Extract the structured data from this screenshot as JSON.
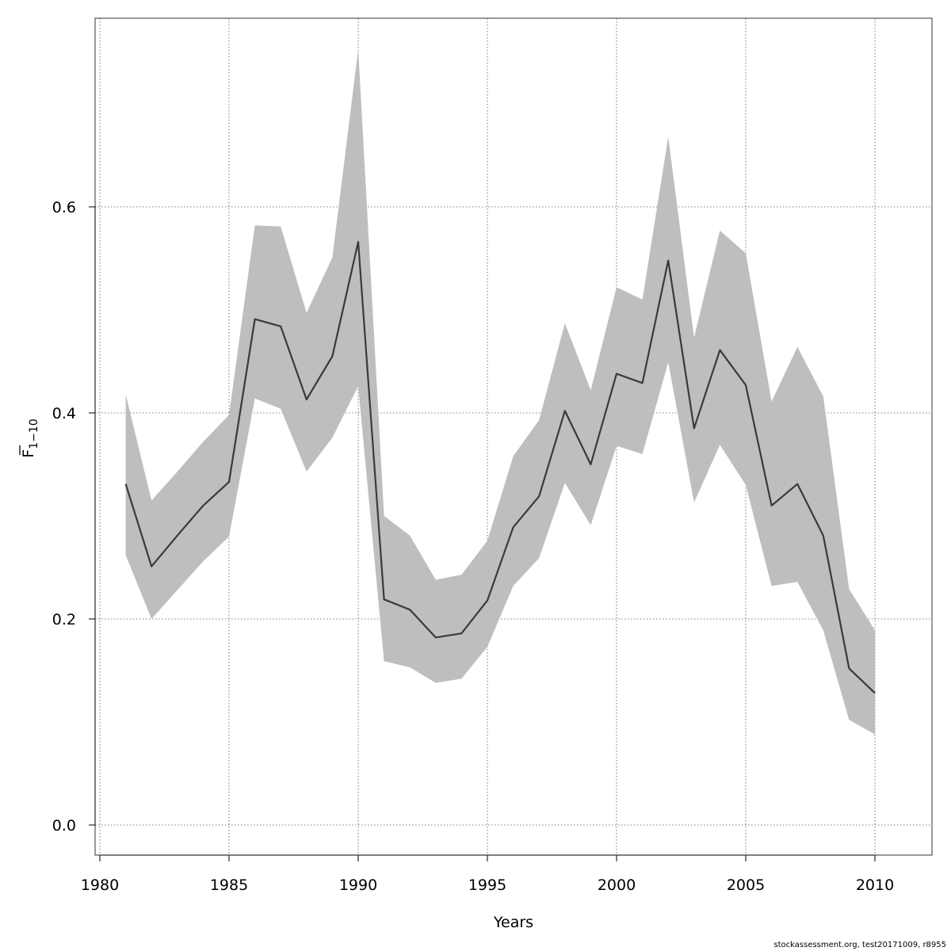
{
  "chart_data": {
    "type": "line",
    "title": "",
    "xlabel": "Years",
    "ylabel_main": "F",
    "ylabel_sub": "1−10",
    "xlim": [
      1980,
      2010
    ],
    "ylim": [
      0.0,
      0.75
    ],
    "x_ticks": [
      1980,
      1985,
      1990,
      1995,
      2000,
      2005,
      2010
    ],
    "y_ticks": [
      0.0,
      0.2,
      0.4,
      0.6
    ],
    "y_tick_labels": [
      "0.0",
      "0.2",
      "0.4",
      "0.6"
    ],
    "grid": true,
    "x": [
      1981,
      1982,
      1983,
      1984,
      1985,
      1986,
      1987,
      1988,
      1989,
      1990,
      1991,
      1992,
      1993,
      1994,
      1995,
      1996,
      1997,
      1998,
      1999,
      2000,
      2001,
      2002,
      2003,
      2004,
      2005,
      2006,
      2007,
      2008,
      2009,
      2010
    ],
    "series": [
      {
        "values": [
          0.331,
          0.251,
          0.281,
          0.31,
          0.333,
          0.491,
          0.484,
          0.413,
          0.455,
          0.566,
          0.219,
          0.209,
          0.182,
          0.186,
          0.218,
          0.289,
          0.319,
          0.402,
          0.35,
          0.438,
          0.429,
          0.548,
          0.385,
          0.461,
          0.427,
          0.31,
          0.331,
          0.281,
          0.152,
          0.128
        ]
      }
    ],
    "band": {
      "lower": [
        0.262,
        0.2,
        0.228,
        0.256,
        0.28,
        0.414,
        0.404,
        0.343,
        0.376,
        0.426,
        0.159,
        0.153,
        0.138,
        0.142,
        0.173,
        0.232,
        0.259,
        0.332,
        0.291,
        0.368,
        0.36,
        0.449,
        0.313,
        0.369,
        0.33,
        0.232,
        0.236,
        0.189,
        0.102,
        0.088
      ],
      "upper": [
        0.418,
        0.315,
        0.343,
        0.372,
        0.398,
        0.582,
        0.581,
        0.497,
        0.551,
        0.753,
        0.3,
        0.281,
        0.238,
        0.243,
        0.276,
        0.358,
        0.393,
        0.487,
        0.422,
        0.522,
        0.51,
        0.668,
        0.473,
        0.577,
        0.555,
        0.411,
        0.464,
        0.416,
        0.229,
        0.189
      ]
    },
    "colors": {
      "line": "#3a3a3a",
      "band": "#bebebe",
      "grid": "#555555",
      "axis": "#333333"
    }
  },
  "footer": {
    "text": "stockassessment.org, test20171009, r8955"
  }
}
